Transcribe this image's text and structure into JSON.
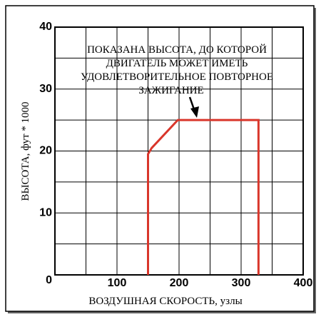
{
  "chart_data": {
    "type": "line",
    "x_label": "ВОЗДУШНАЯ СКОРОСТЬ, узлы",
    "y_label": "ВЫСОТА, фут * 1000",
    "annotation": [
      "ПОКАЗАНА ВЫСОТА, ДО КОТОРОЙ",
      "ДВИГАТЕЛЬ МОЖЕТ ИМЕТЬ",
      "УДОВЛЕТВОРИТЕЛЬНОЕ ПОВТОРНОЕ",
      "ЗАЖИГАНИЕ"
    ],
    "series": [
      {
        "color": "#d9362b",
        "x": [
          150,
          150,
          156,
          198,
          328,
          328
        ],
        "values": [
          0,
          19.5,
          20.5,
          25,
          25,
          0
        ]
      }
    ],
    "xlim": [
      0,
      400
    ],
    "xticks": [
      100,
      200,
      300,
      400
    ],
    "xminor": [
      50,
      150,
      250,
      350
    ],
    "ylim": [
      0,
      40
    ],
    "yticks": [
      0,
      10,
      20,
      30,
      40
    ],
    "yminor": [
      5,
      15,
      25,
      35
    ],
    "grid": true
  }
}
